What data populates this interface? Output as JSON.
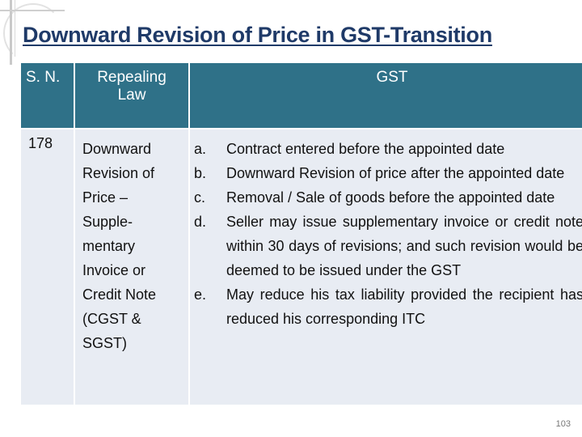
{
  "slide": {
    "title": "Downward Revision of Price in GST-Transition",
    "page_number": "103"
  },
  "table": {
    "headers": {
      "sn": "S. N.",
      "law": "Repealing Law",
      "gst": "GST"
    },
    "row": {
      "sn": "178",
      "law_lines": [
        "Downward",
        "Revision of",
        "Price –",
        "Supple-",
        "mentary",
        "Invoice or",
        "Credit Note",
        "(CGST &",
        "SGST)"
      ],
      "gst_items": [
        {
          "marker": "a.",
          "text": "Contract entered before the appointed date"
        },
        {
          "marker": "b.",
          "text": "Downward Revision of price after the appointed date"
        },
        {
          "marker": "c.",
          "text": "Removal / Sale of goods before the appointed date"
        },
        {
          "marker": "d.",
          "text": "Seller may issue supplementary invoice or credit note within 30 days of revisions; and such revision would be deemed to be issued under the GST"
        },
        {
          "marker": "e.",
          "text": "May reduce his tax liability provided the recipient has reduced his corresponding ITC"
        }
      ]
    }
  }
}
